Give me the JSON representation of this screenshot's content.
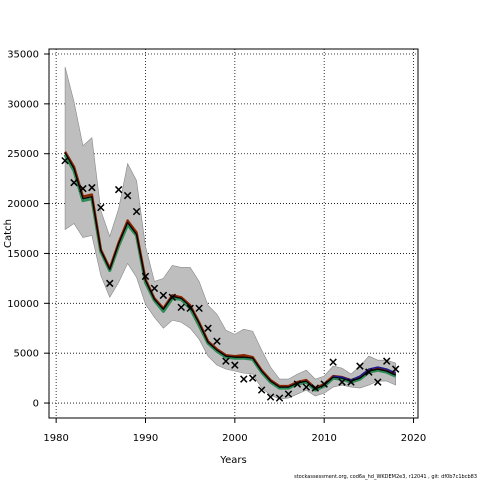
{
  "chart_data": {
    "type": "line",
    "xlabel": "Years",
    "ylabel": "Catch",
    "xlim": [
      1979.2,
      2020.5
    ],
    "ylim": [
      -1500,
      35500
    ],
    "xticks": [
      1980,
      1990,
      2000,
      2010,
      2020
    ],
    "yticks": [
      0,
      5000,
      10000,
      15000,
      20000,
      25000,
      30000,
      35000
    ],
    "grid": true,
    "legend": "none",
    "colors": {
      "band": "#bebebe",
      "band_edge": "#888888",
      "main_line": "#000000",
      "brown_line": "#8b2500",
      "green_line": "#2e8b57",
      "blue_line": "#1e1a8c",
      "observed_marker": "#000000"
    },
    "years": [
      1981,
      1982,
      1983,
      1984,
      1985,
      1986,
      1987,
      1988,
      1989,
      1990,
      1991,
      1992,
      1993,
      1994,
      1995,
      1996,
      1997,
      1998,
      1999,
      2000,
      2001,
      2002,
      2003,
      2004,
      2005,
      2006,
      2007,
      2008,
      2009,
      2010,
      2011,
      2012,
      2013,
      2014,
      2015,
      2016,
      2017,
      2018
    ],
    "band_upper": [
      33700,
      30200,
      25800,
      26600,
      19300,
      16700,
      19500,
      24000,
      22300,
      15700,
      12200,
      12500,
      13800,
      13600,
      13600,
      12200,
      9800,
      8900,
      7300,
      6900,
      7400,
      7200,
      5300,
      3600,
      2400,
      2400,
      2900,
      3300,
      2400,
      2700,
      3700,
      3500,
      2900,
      3700,
      4700,
      4300,
      4300,
      4000
    ],
    "band_lower": [
      17400,
      18000,
      16600,
      16800,
      12800,
      10600,
      12100,
      14000,
      12600,
      9900,
      8600,
      7500,
      8300,
      8100,
      7500,
      6400,
      4700,
      3800,
      3400,
      3200,
      3000,
      2900,
      1500,
      800,
      400,
      500,
      900,
      1300,
      700,
      1000,
      1600,
      1800,
      1600,
      1500,
      1800,
      2200,
      2200,
      1800
    ],
    "series": [
      {
        "values": [
          24900,
          23300,
          20300,
          20500,
          15200,
          13300,
          15800,
          17900,
          16800,
          12100,
          10300,
          9200,
          10500,
          10400,
          9500,
          7800,
          6000,
          5200,
          4600,
          4500,
          4500,
          4400,
          3100,
          2100,
          1500,
          1500,
          1900,
          2100,
          1300,
          1700,
          2500,
          2400,
          2100,
          2400,
          3100,
          3300,
          3100,
          2700
        ]
      },
      {
        "values": [
          25200,
          23700,
          20700,
          20900,
          15400,
          13500,
          16100,
          18300,
          17100,
          12400,
          10500,
          9500,
          10800,
          10600,
          9800,
          8100,
          6200,
          5400,
          4800,
          4700,
          4800,
          4600,
          3300,
          2300,
          1700,
          1700,
          2100,
          2300,
          1500,
          1900,
          2700,
          2600,
          2300,
          2600,
          3300,
          3500,
          3300,
          2900
        ]
      },
      {
        "values": [
          25100,
          23500,
          20500,
          20700,
          15300,
          13400,
          16000,
          18100,
          16900,
          12300,
          10400,
          9400,
          10700,
          10500,
          9700,
          8000,
          6100,
          5300,
          4700,
          4600,
          4600,
          4500,
          3200,
          2200,
          1600,
          1600,
          2000,
          2200,
          1400,
          1800,
          2600,
          2500,
          2200,
          2500,
          3200,
          3400,
          3200,
          2800
        ]
      },
      {
        "values": [
          null,
          null,
          null,
          null,
          null,
          null,
          null,
          null,
          null,
          null,
          null,
          null,
          null,
          null,
          null,
          null,
          null,
          null,
          null,
          null,
          null,
          null,
          null,
          null,
          null,
          null,
          null,
          null,
          null,
          null,
          2700,
          2600,
          2300,
          2700,
          3400,
          3600,
          3400,
          3000
        ]
      }
    ],
    "observed": [
      [
        1981,
        24300
      ],
      [
        1982,
        22100
      ],
      [
        1983,
        21500
      ],
      [
        1984,
        21600
      ],
      [
        1985,
        19600
      ],
      [
        1986,
        12000
      ],
      [
        1987,
        21400
      ],
      [
        1988,
        20800
      ],
      [
        1989,
        19200
      ],
      [
        1990,
        12700
      ],
      [
        1991,
        11500
      ],
      [
        1992,
        10800
      ],
      [
        1993,
        10600
      ],
      [
        1994,
        9600
      ],
      [
        1995,
        9500
      ],
      [
        1996,
        9500
      ],
      [
        1997,
        7500
      ],
      [
        1998,
        6200
      ],
      [
        1999,
        4200
      ],
      [
        2000,
        3800
      ],
      [
        2001,
        2400
      ],
      [
        2002,
        2500
      ],
      [
        2003,
        1300
      ],
      [
        2004,
        600
      ],
      [
        2005,
        500
      ],
      [
        2006,
        900
      ],
      [
        2007,
        1900
      ],
      [
        2008,
        1600
      ],
      [
        2009,
        1500
      ],
      [
        2010,
        1900
      ],
      [
        2011,
        4100
      ],
      [
        2012,
        2100
      ],
      [
        2013,
        2100
      ],
      [
        2014,
        3700
      ],
      [
        2015,
        3100
      ],
      [
        2016,
        2100
      ],
      [
        2017,
        4200
      ],
      [
        2018,
        3400
      ]
    ]
  },
  "footer": {
    "text": "stockassessment.org,  cod6a_hd_WKDEM2e3,  r12041 , git: df0b7c1bcb83"
  }
}
